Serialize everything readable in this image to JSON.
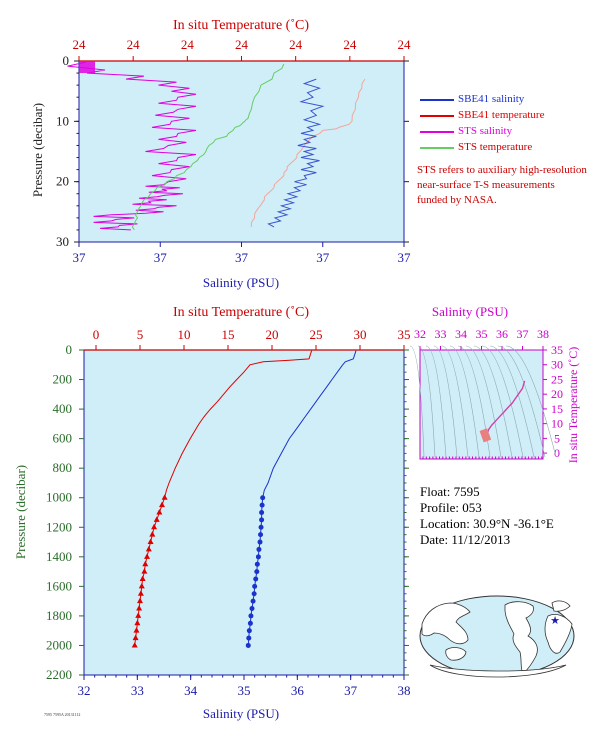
{
  "colors": {
    "plot_bg": "#d0eef7",
    "sbe_salinity": "#1a33cc",
    "sbe_temperature": "#e00000",
    "sts_salinity": "#e000e0",
    "sts_temperature": "#66cc66",
    "sbe_temperature_top": "#f2a69c",
    "sbe_salinity_top": "#3a55d0",
    "title_red": "#cc0000",
    "title_blue": "#1a1aaa",
    "title_green": "#2a6e2a",
    "title_magenta": "#cc00cc"
  },
  "legend": [
    {
      "label": "SBE41 salinity",
      "color": "#1a33cc"
    },
    {
      "label": "SBE41 temperature",
      "color": "#e00000"
    },
    {
      "label": "STS salinity",
      "color": "#e000e0"
    },
    {
      "label": "STS temperature",
      "color": "#66cc66"
    }
  ],
  "note": "STS refers to auxiliary high-resolution near-surface T-S measurements funded by NASA.",
  "info": {
    "float": "Float:  7595",
    "profile": "Profile:  053",
    "location": "Location:  30.9°N  -36.1°E",
    "date": "Date:  11/12/2013"
  },
  "stamp": "7595 7595A 20131112",
  "chart_data": [
    {
      "type": "line",
      "name": "near-surface",
      "title_top": "In situ Temperature (˚C)",
      "xlabel": "Salinity (PSU)",
      "ylabel": "Pressure (decibar)",
      "y_ticks": [
        "0",
        "10",
        "20",
        "30"
      ],
      "x_top_ticks": [
        "24",
        "24",
        "24",
        "24",
        "24",
        "24",
        "24"
      ],
      "x_bottom_ticks": [
        "37",
        "37",
        "37",
        "37",
        "37"
      ],
      "ylim": [
        0,
        30
      ],
      "sts_salinity": {
        "x": [
          0.02,
          0.08,
          0.2,
          0.3,
          0.34,
          0.36,
          0.3,
          0.36,
          0.29,
          0.34,
          0.28,
          0.36,
          0.3,
          0.33,
          0.26,
          0.36,
          0.3,
          0.34,
          0.28,
          0.33,
          0.26,
          0.31,
          0.27,
          0.32,
          0.24,
          0.27,
          0.22,
          0.3,
          0.23,
          0.26,
          0.1,
          0.17,
          0.1,
          0.18,
          0.12,
          0.16
        ],
        "y": [
          0.2,
          1.5,
          2.5,
          3.5,
          4.5,
          5.5,
          6.5,
          7.5,
          8.5,
          9.5,
          10.5,
          11.5,
          12.5,
          13.5,
          14.5,
          15.5,
          16.5,
          17.5,
          18.5,
          19.5,
          20.5,
          21.0,
          21.5,
          22.0,
          22.5,
          23.0,
          23.5,
          24.0,
          24.5,
          25.0,
          25.5,
          26.0,
          26.5,
          27.0,
          27.5,
          28.0
        ]
      },
      "sts_temperature": {
        "x": [
          0.63,
          0.6,
          0.56,
          0.54,
          0.53,
          0.52,
          0.51,
          0.5,
          0.48,
          0.46,
          0.42,
          0.4,
          0.39,
          0.37,
          0.35,
          0.33,
          0.3,
          0.27,
          0.24,
          0.22,
          0.2,
          0.19,
          0.18,
          0.18,
          0.17,
          0.17
        ],
        "y": [
          0.5,
          2.0,
          4.0,
          6.0,
          8.0,
          9.5,
          10.0,
          10.5,
          11.0,
          12.0,
          13.0,
          14.0,
          15.0,
          16.0,
          17.0,
          18.0,
          19.0,
          20.0,
          21.0,
          22.0,
          23.0,
          24.0,
          25.0,
          26.0,
          27.0,
          28.0
        ]
      },
      "sbe_temperature": {
        "x": [
          0.88,
          0.87,
          0.86,
          0.85,
          0.84,
          0.8,
          0.75,
          0.72,
          0.7,
          0.68,
          0.67,
          0.65,
          0.64,
          0.63,
          0.61,
          0.6,
          0.58,
          0.57,
          0.55,
          0.54,
          0.53
        ],
        "y": [
          3.0,
          4.5,
          6.0,
          8.0,
          10.0,
          11.0,
          11.5,
          12.5,
          13.5,
          15.0,
          16.0,
          17.0,
          18.0,
          19.0,
          20.0,
          21.0,
          22.0,
          23.0,
          24.5,
          26.0,
          27.5
        ]
      },
      "sbe_salinity": {
        "x": [
          0.73,
          0.74,
          0.72,
          0.75,
          0.73,
          0.74,
          0.72,
          0.73,
          0.71,
          0.73,
          0.72,
          0.74,
          0.72,
          0.73,
          0.7,
          0.7,
          0.68,
          0.67,
          0.66,
          0.65,
          0.64,
          0.62,
          0.6
        ],
        "y": [
          3.0,
          4.5,
          6.0,
          7.5,
          9.0,
          10.5,
          11.5,
          12.5,
          13.5,
          14.5,
          15.5,
          16.5,
          17.5,
          18.5,
          19.5,
          20.5,
          21.5,
          22.5,
          23.5,
          24.5,
          25.5,
          26.5,
          27.5
        ]
      }
    },
    {
      "type": "line",
      "name": "full-profile",
      "title_top": "In situ Temperature (˚C)",
      "xlabel": "Salinity (PSU)",
      "ylabel": "Pressure (decibar)",
      "temperature_ticks": [
        0,
        5,
        10,
        15,
        20,
        25,
        30,
        35
      ],
      "salinity_ticks": [
        32,
        33,
        34,
        35,
        36,
        37,
        38
      ],
      "pressure_ticks": [
        0,
        200,
        400,
        600,
        800,
        1000,
        1200,
        1400,
        1600,
        1800,
        2000,
        2200
      ],
      "temperature_range": [
        0,
        35
      ],
      "salinity_range": [
        32,
        38
      ],
      "pressure_range": [
        0,
        2200
      ],
      "temperature": {
        "pressure": [
          5,
          60,
          70,
          80,
          100,
          150,
          200,
          250,
          300,
          350,
          400,
          450,
          500,
          550,
          600,
          700,
          800,
          900,
          950,
          1000,
          1050,
          1100,
          1150,
          1200,
          1250,
          1300,
          1350,
          1400,
          1450,
          1500,
          1550,
          1600,
          1650,
          1700,
          1750,
          1800,
          1850,
          1900,
          1950,
          2000
        ],
        "values": [
          24.5,
          24.2,
          22.0,
          19.0,
          17.5,
          16.8,
          16.0,
          15.2,
          14.5,
          13.8,
          13.0,
          12.3,
          11.7,
          11.2,
          10.7,
          9.8,
          9.0,
          8.3,
          8.0,
          7.8,
          7.5,
          7.2,
          6.9,
          6.6,
          6.4,
          6.2,
          6.0,
          5.8,
          5.6,
          5.5,
          5.3,
          5.2,
          5.1,
          5.0,
          4.9,
          4.8,
          4.7,
          4.6,
          4.5,
          4.4
        ]
      },
      "salinity": {
        "pressure": [
          5,
          60,
          80,
          100,
          150,
          200,
          250,
          300,
          350,
          400,
          450,
          500,
          550,
          600,
          700,
          800,
          900,
          950,
          1000,
          1050,
          1100,
          1150,
          1200,
          1250,
          1300,
          1350,
          1400,
          1450,
          1500,
          1550,
          1600,
          1650,
          1700,
          1750,
          1800,
          1850,
          1900,
          1950,
          2000
        ],
        "values": [
          37.1,
          37.05,
          36.9,
          36.85,
          36.75,
          36.65,
          36.55,
          36.45,
          36.35,
          36.25,
          36.15,
          36.05,
          35.95,
          35.85,
          35.7,
          35.55,
          35.45,
          35.38,
          35.35,
          35.34,
          35.33,
          35.33,
          35.32,
          35.31,
          35.3,
          35.28,
          35.27,
          35.25,
          35.24,
          35.22,
          35.2,
          35.19,
          35.17,
          35.15,
          35.13,
          35.12,
          35.1,
          35.09,
          35.08
        ]
      },
      "temperature_markers_from_pressure": 1000,
      "salinity_markers_from_pressure": 1000
    },
    {
      "type": "scatter",
      "name": "ts-diagram",
      "title_top": "Salinity (PSU)",
      "ylabel": "In situ Temperature (˚C)",
      "salinity_ticks": [
        32,
        33,
        34,
        35,
        36,
        37,
        38
      ],
      "temperature_ticks": [
        0,
        5,
        10,
        15,
        20,
        25,
        30,
        35
      ],
      "salinity_range": [
        32,
        38
      ],
      "temperature_range": [
        -2,
        35
      ],
      "curve": {
        "salinity": [
          35.1,
          35.15,
          35.2,
          35.3,
          35.35,
          35.5,
          35.7,
          35.9,
          36.1,
          36.3,
          36.5,
          36.65,
          36.8,
          37.0,
          37.1
        ],
        "temperature": [
          4.4,
          5.0,
          6.0,
          7.0,
          8.0,
          9.5,
          11.0,
          12.5,
          14.0,
          15.5,
          17.0,
          18.5,
          20.0,
          22.0,
          24.5
        ]
      }
    },
    {
      "type": "map",
      "name": "world-map",
      "marker": {
        "lat": 30.9,
        "lon": -36.1,
        "symbol": "★"
      }
    }
  ]
}
